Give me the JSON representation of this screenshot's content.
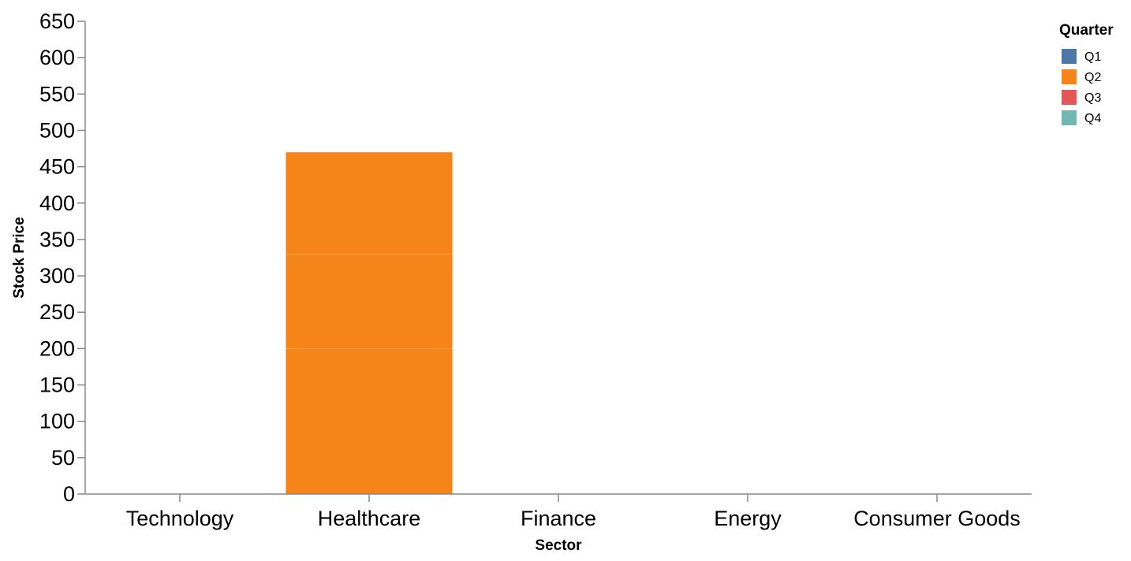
{
  "chart_data": {
    "type": "bar",
    "stacked": true,
    "categories": [
      "Technology",
      "Healthcare",
      "Finance",
      "Energy",
      "Consumer Goods"
    ],
    "series": [
      {
        "name": "Q1",
        "color": "#4c78a8",
        "values": [
          0,
          0,
          0,
          0,
          0
        ]
      },
      {
        "name": "Q2",
        "color": "#f58518",
        "values": [
          0,
          470,
          0,
          0,
          0
        ],
        "segments": [
          [
            0,
            200
          ],
          [
            200,
            330
          ],
          [
            330,
            470
          ]
        ]
      },
      {
        "name": "Q3",
        "color": "#e45756",
        "values": [
          0,
          0,
          0,
          0,
          0
        ]
      },
      {
        "name": "Q4",
        "color": "#72b7b2",
        "values": [
          0,
          0,
          0,
          0,
          0
        ]
      }
    ],
    "xlabel": "Sector",
    "ylabel": "Stock Price",
    "ylim": [
      0,
      650
    ],
    "yticks": [
      0,
      50,
      100,
      150,
      200,
      250,
      300,
      350,
      400,
      450,
      500,
      550,
      600,
      650
    ],
    "legend_title": "Quarter",
    "legend_placement": "top-right",
    "grid": false
  }
}
